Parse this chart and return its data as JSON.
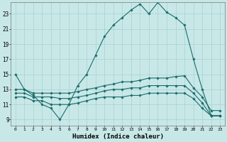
{
  "title": "",
  "xlabel": "Humidex (Indice chaleur)",
  "bg_color": "#c8e8e8",
  "line_color": "#1a6b6b",
  "grid_color": "#a8d0d0",
  "x_ticks": [
    0,
    1,
    2,
    3,
    4,
    5,
    6,
    7,
    8,
    9,
    10,
    11,
    12,
    13,
    14,
    15,
    16,
    17,
    18,
    19,
    20,
    21,
    22,
    23
  ],
  "y_ticks": [
    9,
    11,
    13,
    15,
    17,
    19,
    21,
    23
  ],
  "ylim": [
    8.2,
    24.5
  ],
  "xlim": [
    -0.5,
    23.5
  ],
  "series": {
    "main": {
      "x": [
        0,
        1,
        2,
        3,
        4,
        5,
        6,
        7,
        8,
        9,
        10,
        11,
        12,
        13,
        14,
        15,
        16,
        17,
        18,
        19,
        20,
        21,
        22,
        23
      ],
      "y": [
        15,
        13,
        12.2,
        11,
        10.5,
        9,
        11,
        13.5,
        15,
        17.5,
        20,
        21.5,
        22.5,
        23.5,
        24.3,
        23,
        24.5,
        23.2,
        22.5,
        21.5,
        17,
        13,
        9.5,
        9.5
      ]
    },
    "upper": {
      "x": [
        0,
        1,
        2,
        3,
        4,
        5,
        6,
        7,
        8,
        9,
        10,
        11,
        12,
        13,
        14,
        15,
        16,
        17,
        18,
        19,
        20,
        21,
        22,
        23
      ],
      "y": [
        13,
        13,
        12.5,
        12.5,
        12.5,
        12.5,
        12.5,
        12.7,
        13,
        13.2,
        13.5,
        13.7,
        14,
        14,
        14.2,
        14.5,
        14.5,
        14.5,
        14.7,
        14.8,
        13.2,
        12,
        10.2,
        10.2
      ]
    },
    "lower": {
      "x": [
        0,
        1,
        2,
        3,
        4,
        5,
        6,
        7,
        8,
        9,
        10,
        11,
        12,
        13,
        14,
        15,
        16,
        17,
        18,
        19,
        20,
        21,
        22,
        23
      ],
      "y": [
        12.5,
        12.5,
        12,
        12,
        12,
        11.8,
        11.8,
        12,
        12.2,
        12.5,
        12.8,
        13,
        13,
        13.2,
        13.2,
        13.5,
        13.5,
        13.5,
        13.5,
        13.5,
        12.5,
        11.2,
        9.5,
        9.5
      ]
    },
    "bottom": {
      "x": [
        0,
        1,
        2,
        3,
        4,
        5,
        6,
        7,
        8,
        9,
        10,
        11,
        12,
        13,
        14,
        15,
        16,
        17,
        18,
        19,
        20,
        21,
        22,
        23
      ],
      "y": [
        12,
        12,
        11.5,
        11.5,
        11,
        11,
        11,
        11.2,
        11.5,
        11.8,
        12,
        12,
        12,
        12.2,
        12.2,
        12.5,
        12.5,
        12.5,
        12.5,
        12.5,
        11.8,
        10.5,
        9.5,
        9.5
      ]
    }
  }
}
